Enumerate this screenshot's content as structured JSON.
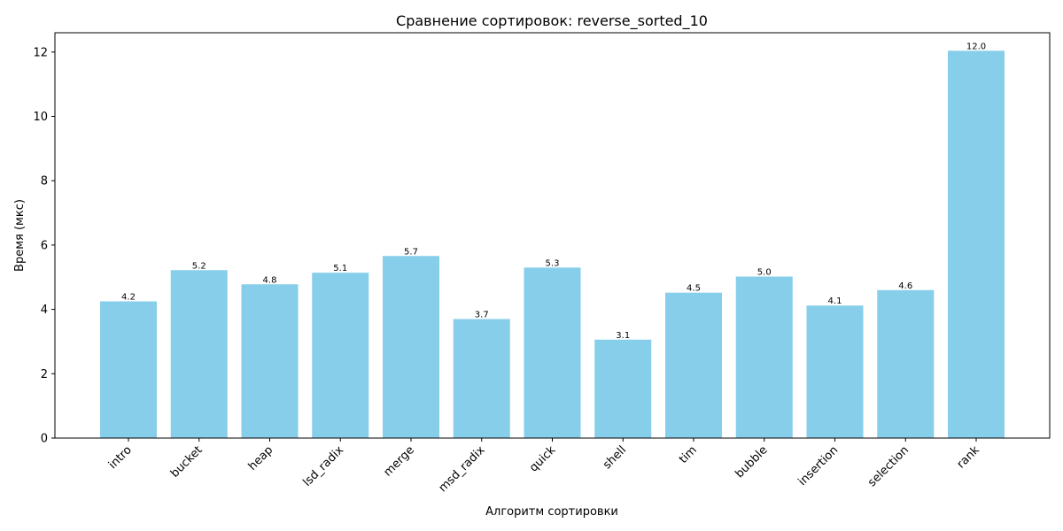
{
  "chart_data": {
    "type": "bar",
    "title": "Сравнение сортировок: reverse_sorted_10",
    "xlabel": "Алгоритм сортировки",
    "ylabel": "Время (мкс)",
    "categories": [
      "intro",
      "bucket",
      "heap",
      "lsd_radix",
      "merge",
      "msd_radix",
      "quick",
      "shell",
      "tim",
      "bubble",
      "insertion",
      "selection",
      "rank"
    ],
    "values": [
      4.25,
      5.22,
      4.78,
      5.14,
      5.66,
      3.7,
      5.3,
      3.06,
      4.52,
      5.02,
      4.12,
      4.6,
      12.04
    ],
    "data_labels": [
      "4.2",
      "5.2",
      "4.8",
      "5.1",
      "5.7",
      "3.7",
      "5.3",
      "3.1",
      "4.5",
      "5.0",
      "4.1",
      "4.6",
      "12.0"
    ],
    "ylim": [
      0,
      12.6
    ],
    "yticks": [
      0,
      2,
      4,
      6,
      8,
      10,
      12
    ],
    "grid": false,
    "bar_color": "#87CEEB",
    "x_tick_rotation_deg": 45
  }
}
